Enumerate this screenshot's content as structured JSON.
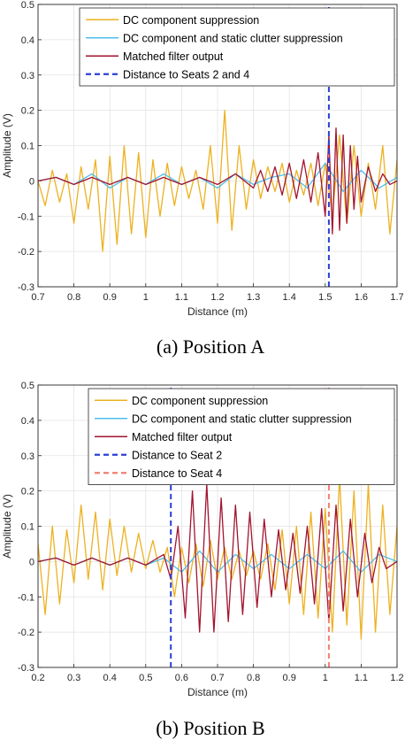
{
  "figure": {
    "captions": [
      "(a) Position A",
      "(b) Position B"
    ]
  },
  "chart_data": [
    {
      "type": "line",
      "xlabel": "Distance (m)",
      "ylabel": "Amplitude (V)",
      "xlim": [
        0.7,
        1.7
      ],
      "ylim": [
        -0.3,
        0.5
      ],
      "xticks": [
        "0.7",
        "0.8",
        "0.9",
        "1",
        "1.1",
        "1.2",
        "1.3",
        "1.4",
        "1.5",
        "1.6",
        "1.7"
      ],
      "yticks": [
        "-0.3",
        "-0.2",
        "-0.1",
        "0",
        "0.1",
        "0.2",
        "0.3",
        "0.4",
        "0.5"
      ],
      "grid": true,
      "legend_position": "top-right",
      "series": [
        {
          "name": "DC component suppression",
          "color": "#EDB120",
          "style": "solid",
          "x": [
            0.7,
            0.72,
            0.74,
            0.76,
            0.78,
            0.8,
            0.82,
            0.84,
            0.86,
            0.88,
            0.9,
            0.92,
            0.94,
            0.96,
            0.98,
            1.0,
            1.02,
            1.04,
            1.06,
            1.08,
            1.1,
            1.12,
            1.14,
            1.16,
            1.18,
            1.2,
            1.22,
            1.24,
            1.26,
            1.28,
            1.3,
            1.32,
            1.34,
            1.36,
            1.38,
            1.4,
            1.42,
            1.44,
            1.46,
            1.48,
            1.5,
            1.52,
            1.54,
            1.56,
            1.58,
            1.6,
            1.62,
            1.64,
            1.66,
            1.68,
            1.7
          ],
          "y": [
            0.0,
            -0.07,
            0.03,
            -0.06,
            0.02,
            -0.12,
            0.04,
            -0.08,
            0.06,
            -0.2,
            0.07,
            -0.18,
            0.1,
            -0.15,
            0.08,
            -0.16,
            0.06,
            -0.1,
            0.05,
            -0.07,
            0.04,
            -0.05,
            0.03,
            -0.08,
            0.1,
            -0.12,
            0.2,
            -0.14,
            0.1,
            -0.08,
            0.06,
            -0.05,
            0.04,
            -0.03,
            0.05,
            -0.06,
            0.03,
            -0.04,
            0.05,
            -0.07,
            0.05,
            -0.1,
            0.13,
            -0.12,
            0.1,
            -0.1,
            0.05,
            -0.08,
            0.1,
            -0.15,
            0.06
          ]
        },
        {
          "name": "DC component and static clutter suppression",
          "color": "#4DBEEE",
          "style": "solid",
          "x": [
            0.7,
            0.75,
            0.8,
            0.85,
            0.9,
            0.95,
            1.0,
            1.05,
            1.1,
            1.15,
            1.2,
            1.25,
            1.3,
            1.35,
            1.4,
            1.45,
            1.5,
            1.55,
            1.6,
            1.65,
            1.7
          ],
          "y": [
            0.0,
            0.01,
            -0.01,
            0.02,
            -0.02,
            0.01,
            -0.01,
            0.02,
            -0.01,
            0.01,
            -0.02,
            0.02,
            -0.01,
            0.01,
            0.02,
            -0.02,
            0.05,
            -0.03,
            0.03,
            -0.02,
            0.01
          ]
        },
        {
          "name": "Matched filter output",
          "color": "#A2142F",
          "style": "solid",
          "x": [
            0.7,
            0.75,
            0.8,
            0.85,
            0.9,
            0.95,
            1.0,
            1.05,
            1.1,
            1.15,
            1.2,
            1.25,
            1.3,
            1.32,
            1.34,
            1.36,
            1.38,
            1.4,
            1.42,
            1.44,
            1.46,
            1.48,
            1.5,
            1.51,
            1.52,
            1.53,
            1.54,
            1.55,
            1.56,
            1.57,
            1.58,
            1.59,
            1.6,
            1.62,
            1.64,
            1.66,
            1.68,
            1.7
          ],
          "y": [
            0.0,
            0.01,
            -0.01,
            0.01,
            -0.01,
            0.01,
            -0.01,
            0.01,
            -0.01,
            0.01,
            -0.01,
            0.02,
            -0.02,
            0.03,
            -0.03,
            0.04,
            -0.04,
            0.05,
            -0.05,
            0.06,
            -0.06,
            0.08,
            -0.1,
            0.13,
            -0.15,
            0.15,
            -0.14,
            0.13,
            -0.12,
            0.1,
            -0.08,
            0.07,
            -0.06,
            0.04,
            -0.03,
            0.02,
            -0.01,
            0.0
          ]
        },
        {
          "name": "Distance to Seats 2 and 4",
          "color": "#2B3FD6",
          "style": "dashed",
          "x": [
            1.51,
            1.51
          ],
          "y": [
            -0.3,
            0.5
          ]
        }
      ]
    },
    {
      "type": "line",
      "xlabel": "Distance (m)",
      "ylabel": "Amplitude (V)",
      "xlim": [
        0.2,
        1.2
      ],
      "ylim": [
        -0.3,
        0.5
      ],
      "xticks": [
        "0.2",
        "0.3",
        "0.4",
        "0.5",
        "0.6",
        "0.7",
        "0.8",
        "0.9",
        "1",
        "1.1",
        "1.2"
      ],
      "yticks": [
        "-0.3",
        "-0.2",
        "-0.1",
        "0",
        "0.1",
        "0.2",
        "0.3",
        "0.4",
        "0.5"
      ],
      "grid": true,
      "legend_position": "top-right",
      "series": [
        {
          "name": "DC component suppression",
          "color": "#EDB120",
          "style": "solid",
          "x": [
            0.2,
            0.22,
            0.24,
            0.26,
            0.28,
            0.3,
            0.32,
            0.34,
            0.36,
            0.38,
            0.4,
            0.42,
            0.44,
            0.46,
            0.48,
            0.5,
            0.52,
            0.54,
            0.56,
            0.58,
            0.6,
            0.62,
            0.64,
            0.66,
            0.68,
            0.7,
            0.72,
            0.74,
            0.76,
            0.78,
            0.8,
            0.82,
            0.84,
            0.86,
            0.88,
            0.9,
            0.92,
            0.94,
            0.96,
            0.98,
            1.0,
            1.02,
            1.04,
            1.06,
            1.08,
            1.1,
            1.12,
            1.14,
            1.16,
            1.18,
            1.2
          ],
          "y": [
            0.05,
            -0.15,
            0.1,
            -0.12,
            0.09,
            -0.06,
            0.16,
            -0.05,
            0.14,
            -0.08,
            0.12,
            -0.04,
            0.1,
            -0.03,
            0.08,
            -0.02,
            0.06,
            -0.03,
            0.04,
            -0.1,
            0.04,
            -0.06,
            0.05,
            -0.07,
            0.06,
            -0.05,
            0.04,
            -0.05,
            0.03,
            -0.04,
            0.03,
            -0.05,
            0.05,
            -0.08,
            0.09,
            -0.12,
            0.1,
            -0.15,
            0.14,
            -0.16,
            0.15,
            -0.2,
            0.24,
            -0.18,
            0.2,
            -0.22,
            0.22,
            -0.2,
            0.16,
            -0.15,
            0.1
          ]
        },
        {
          "name": "DC component and static clutter suppression",
          "color": "#4DBEEE",
          "style": "solid",
          "x": [
            0.2,
            0.25,
            0.3,
            0.35,
            0.4,
            0.45,
            0.5,
            0.55,
            0.6,
            0.65,
            0.7,
            0.75,
            0.8,
            0.85,
            0.9,
            0.95,
            1.0,
            1.05,
            1.1,
            1.15,
            1.2
          ],
          "y": [
            0.0,
            0.01,
            -0.01,
            0.01,
            -0.01,
            0.01,
            -0.01,
            0.01,
            -0.03,
            0.03,
            -0.03,
            0.02,
            -0.02,
            0.02,
            -0.02,
            0.02,
            -0.02,
            0.03,
            -0.03,
            0.02,
            0.0
          ]
        },
        {
          "name": "Matched filter output",
          "color": "#A2142F",
          "style": "solid",
          "x": [
            0.2,
            0.25,
            0.3,
            0.35,
            0.4,
            0.45,
            0.5,
            0.55,
            0.57,
            0.59,
            0.61,
            0.63,
            0.65,
            0.67,
            0.69,
            0.71,
            0.73,
            0.75,
            0.77,
            0.79,
            0.81,
            0.83,
            0.85,
            0.87,
            0.89,
            0.91,
            0.93,
            0.95,
            0.97,
            0.99,
            1.01,
            1.03,
            1.05,
            1.07,
            1.09,
            1.11,
            1.13,
            1.15,
            1.17,
            1.2
          ],
          "y": [
            0.0,
            0.01,
            -0.01,
            0.01,
            -0.01,
            0.01,
            -0.01,
            0.02,
            -0.05,
            0.1,
            -0.16,
            0.2,
            -0.2,
            0.22,
            -0.2,
            0.18,
            -0.17,
            0.16,
            -0.15,
            0.14,
            -0.13,
            0.12,
            -0.1,
            0.09,
            -0.08,
            0.08,
            -0.09,
            0.1,
            -0.12,
            0.15,
            -0.17,
            0.16,
            -0.14,
            0.12,
            -0.1,
            0.08,
            -0.06,
            0.04,
            -0.02,
            0.0
          ]
        },
        {
          "name": "Distance to Seat 2",
          "color": "#2B3FD6",
          "style": "dashed",
          "x": [
            0.57,
            0.57
          ],
          "y": [
            -0.3,
            0.5
          ]
        },
        {
          "name": "Distance to Seat 4",
          "color": "#F08070",
          "style": "dashed",
          "x": [
            1.01,
            1.01
          ],
          "y": [
            -0.3,
            0.5
          ]
        }
      ]
    }
  ]
}
